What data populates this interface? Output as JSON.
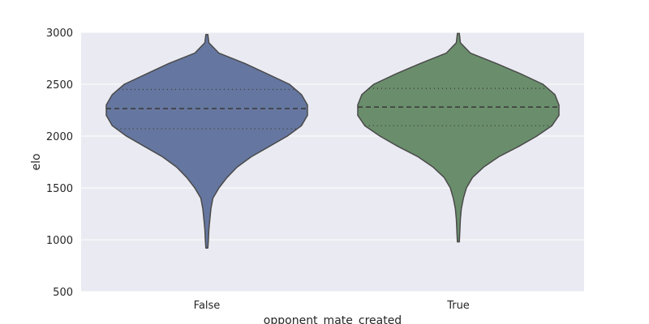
{
  "chart_data": {
    "type": "violin",
    "title": "",
    "xlabel": "opponent_mate_created",
    "ylabel": "elo",
    "ylim": [
      500,
      3000
    ],
    "yticks": [
      500,
      1000,
      1500,
      2000,
      2500,
      3000
    ],
    "grid": true,
    "categories": [
      "False",
      "True"
    ],
    "colors": [
      "#6577a0",
      "#6a8e6c"
    ],
    "edge_color": "#4a4a4a",
    "plot_background": "#eaeaf2",
    "violins": [
      {
        "category": "False",
        "median": 2265,
        "q1": 2070,
        "q3": 2450,
        "min": 920,
        "max": 2980,
        "profile": [
          [
            920,
            0.01
          ],
          [
            1000,
            0.015
          ],
          [
            1100,
            0.02
          ],
          [
            1200,
            0.03
          ],
          [
            1300,
            0.04
          ],
          [
            1400,
            0.06
          ],
          [
            1500,
            0.12
          ],
          [
            1600,
            0.2
          ],
          [
            1700,
            0.3
          ],
          [
            1800,
            0.44
          ],
          [
            1900,
            0.62
          ],
          [
            2000,
            0.8
          ],
          [
            2100,
            0.94
          ],
          [
            2200,
            1.0
          ],
          [
            2300,
            1.0
          ],
          [
            2400,
            0.94
          ],
          [
            2500,
            0.82
          ],
          [
            2600,
            0.6
          ],
          [
            2700,
            0.38
          ],
          [
            2800,
            0.12
          ],
          [
            2900,
            0.02
          ],
          [
            2980,
            0.01
          ]
        ]
      },
      {
        "category": "True",
        "median": 2280,
        "q1": 2100,
        "q3": 2460,
        "min": 980,
        "max": 2990,
        "profile": [
          [
            980,
            0.01
          ],
          [
            1100,
            0.015
          ],
          [
            1200,
            0.02
          ],
          [
            1300,
            0.03
          ],
          [
            1400,
            0.05
          ],
          [
            1500,
            0.08
          ],
          [
            1600,
            0.14
          ],
          [
            1700,
            0.25
          ],
          [
            1800,
            0.4
          ],
          [
            1900,
            0.6
          ],
          [
            2000,
            0.78
          ],
          [
            2100,
            0.93
          ],
          [
            2200,
            1.0
          ],
          [
            2300,
            1.0
          ],
          [
            2400,
            0.96
          ],
          [
            2500,
            0.84
          ],
          [
            2600,
            0.62
          ],
          [
            2700,
            0.38
          ],
          [
            2800,
            0.12
          ],
          [
            2900,
            0.02
          ],
          [
            2990,
            0.01
          ]
        ]
      }
    ]
  }
}
